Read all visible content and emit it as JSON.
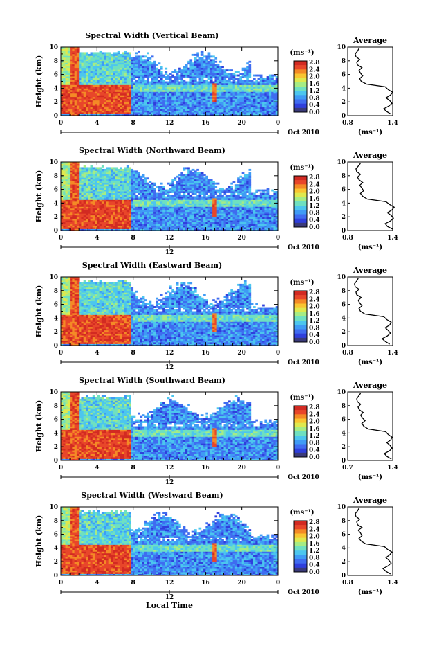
{
  "x_axis_label": "Local Time",
  "date_label": "Oct 2010",
  "colorbar": {
    "unit": "(ms⁻¹)",
    "tick_labels": [
      "0.0",
      "0.4",
      "0.8",
      "1.2",
      "1.6",
      "2.0",
      "2.4",
      "2.8"
    ],
    "colors": [
      "#3a3a7a",
      "#2f3fdc",
      "#3f6cf0",
      "#3f9bf5",
      "#4cc6ee",
      "#6fe0c0",
      "#a6ec84",
      "#dfe94e",
      "#f9c531",
      "#f48a26",
      "#e8462a",
      "#d22a22"
    ]
  },
  "chart_data": [
    {
      "type": "heatmap",
      "title": "Spectral Width (Vertical Beam)",
      "ylabel": "Height (km)",
      "y_ticks": [
        "0",
        "2",
        "4",
        "6",
        "8",
        "10"
      ],
      "x_ticks": [
        "0",
        "4",
        "8",
        "12",
        "16",
        "20",
        "0"
      ],
      "x_day_marker": "",
      "xlim": [
        0,
        24
      ],
      "ylim": [
        0,
        10
      ],
      "profile": {
        "title": "Average",
        "xlabel": "(ms⁻¹)",
        "x_ticks": [
          "0.8",
          "1.4"
        ],
        "xlim": [
          0.8,
          1.4
        ],
        "y_ticks": [
          "0",
          "2",
          "4",
          "6",
          "8",
          "10"
        ],
        "heights": [
          0.2,
          0.6,
          1.0,
          1.4,
          1.8,
          2.2,
          2.6,
          3.0,
          3.4,
          3.8,
          4.2,
          4.6,
          5.0,
          5.4,
          5.8,
          6.2,
          6.6,
          7.0,
          7.4,
          7.8,
          8.2,
          8.6,
          9.0,
          9.4,
          9.8
        ],
        "values": [
          1.38,
          1.32,
          1.28,
          1.35,
          1.39,
          1.36,
          1.31,
          1.37,
          1.4,
          1.34,
          1.3,
          1.05,
          0.98,
          0.96,
          1.0,
          0.97,
          0.95,
          0.99,
          0.93,
          0.92,
          0.96,
          0.91,
          0.9,
          0.93,
          0.95
        ]
      }
    },
    {
      "type": "heatmap",
      "title": "Spectral Width (Northward Beam)",
      "ylabel": "Height (km)",
      "y_ticks": [
        "0",
        "2",
        "4",
        "6",
        "8",
        "10"
      ],
      "x_ticks": [
        "0",
        "4",
        "8",
        "12",
        "16",
        "20",
        "0"
      ],
      "x_day_marker": "12",
      "xlim": [
        0,
        24
      ],
      "ylim": [
        0,
        10
      ],
      "profile": {
        "title": "Average",
        "xlabel": "(ms⁻¹)",
        "x_ticks": [
          "0.8",
          "1.4"
        ],
        "xlim": [
          0.8,
          1.4
        ],
        "y_ticks": [
          "0",
          "2",
          "4",
          "6",
          "8",
          "10"
        ],
        "heights": [
          0.2,
          0.6,
          1.0,
          1.4,
          1.8,
          2.2,
          2.6,
          3.0,
          3.4,
          3.8,
          4.2,
          4.6,
          5.0,
          5.4,
          5.8,
          6.2,
          6.6,
          7.0,
          7.4,
          7.8,
          8.2,
          8.6,
          9.0,
          9.4,
          9.8
        ],
        "values": [
          1.4,
          1.33,
          1.3,
          1.37,
          1.41,
          1.38,
          1.33,
          1.39,
          1.42,
          1.36,
          1.31,
          1.06,
          1.0,
          0.97,
          1.01,
          0.99,
          0.96,
          1.0,
          0.95,
          0.93,
          0.97,
          0.92,
          0.91,
          0.94,
          0.97
        ]
      }
    },
    {
      "type": "heatmap",
      "title": "Spectral Width (Eastward Beam)",
      "ylabel": "Height (km)",
      "y_ticks": [
        "0",
        "2",
        "4",
        "6",
        "8",
        "10"
      ],
      "x_ticks": [
        "0",
        "4",
        "8",
        "12",
        "16",
        "20",
        "0"
      ],
      "x_day_marker": "12",
      "xlim": [
        0,
        24
      ],
      "ylim": [
        0,
        10
      ],
      "profile": {
        "title": "Average",
        "xlabel": "(ms⁻¹)",
        "x_ticks": [
          "0.8",
          "1.4"
        ],
        "xlim": [
          0.8,
          1.4
        ],
        "y_ticks": [
          "0",
          "2",
          "4",
          "6",
          "8",
          "10"
        ],
        "heights": [
          0.2,
          0.6,
          1.0,
          1.4,
          1.8,
          2.2,
          2.6,
          3.0,
          3.4,
          3.8,
          4.2,
          4.6,
          5.0,
          5.4,
          5.8,
          6.2,
          6.6,
          7.0,
          7.4,
          7.8,
          8.2,
          8.6,
          9.0,
          9.4,
          9.8
        ],
        "values": [
          1.36,
          1.3,
          1.26,
          1.33,
          1.37,
          1.34,
          1.3,
          1.36,
          1.38,
          1.32,
          1.28,
          1.03,
          0.97,
          0.95,
          0.99,
          0.96,
          0.94,
          0.98,
          0.92,
          0.91,
          0.95,
          0.9,
          0.89,
          0.92,
          0.94
        ]
      }
    },
    {
      "type": "heatmap",
      "title": "Spectral Width (Southward Beam)",
      "ylabel": "Height (km)",
      "y_ticks": [
        "0",
        "2",
        "4",
        "6",
        "8",
        "10"
      ],
      "x_ticks": [
        "0",
        "4",
        "8",
        "12",
        "16",
        "20",
        "0"
      ],
      "x_day_marker": "12",
      "xlim": [
        0,
        24
      ],
      "ylim": [
        0,
        10
      ],
      "profile": {
        "title": "Average",
        "xlabel": "(ms⁻¹)",
        "x_ticks": [
          "0.7",
          "1.4"
        ],
        "xlim": [
          0.7,
          1.4
        ],
        "y_ticks": [
          "0",
          "2",
          "4",
          "6",
          "8",
          "10"
        ],
        "heights": [
          0.2,
          0.6,
          1.0,
          1.4,
          1.8,
          2.2,
          2.6,
          3.0,
          3.4,
          3.8,
          4.2,
          4.6,
          5.0,
          5.4,
          5.8,
          6.2,
          6.6,
          7.0,
          7.4,
          7.8,
          8.2,
          8.6,
          9.0,
          9.4,
          9.8
        ],
        "values": [
          1.38,
          1.31,
          1.27,
          1.35,
          1.39,
          1.36,
          1.31,
          1.37,
          1.39,
          1.33,
          1.29,
          1.02,
          0.95,
          0.92,
          0.97,
          0.93,
          0.9,
          0.94,
          0.88,
          0.86,
          0.9,
          0.85,
          0.84,
          0.87,
          0.9
        ]
      }
    },
    {
      "type": "heatmap",
      "title": "Spectral Width (Westward Beam)",
      "ylabel": "Height (km)",
      "y_ticks": [
        "0",
        "2",
        "4",
        "6",
        "8",
        "10"
      ],
      "x_ticks": [
        "0",
        "4",
        "8",
        "12",
        "16",
        "20",
        "0"
      ],
      "x_day_marker": "12",
      "xlim": [
        0,
        24
      ],
      "ylim": [
        0,
        10
      ],
      "profile": {
        "title": "Average",
        "xlabel": "(ms⁻¹)",
        "x_ticks": [
          "0.8",
          "1.4"
        ],
        "xlim": [
          0.8,
          1.4
        ],
        "y_ticks": [
          "0",
          "2",
          "4",
          "6",
          "8",
          "10"
        ],
        "heights": [
          0.2,
          0.6,
          1.0,
          1.4,
          1.8,
          2.2,
          2.6,
          3.0,
          3.4,
          3.8,
          4.2,
          4.6,
          5.0,
          5.4,
          5.8,
          6.2,
          6.6,
          7.0,
          7.4,
          7.8,
          8.2,
          8.6,
          9.0,
          9.4,
          9.8
        ],
        "values": [
          1.37,
          1.31,
          1.27,
          1.34,
          1.38,
          1.35,
          1.31,
          1.36,
          1.39,
          1.33,
          1.29,
          1.04,
          0.98,
          0.95,
          0.99,
          0.97,
          0.94,
          0.99,
          0.93,
          0.92,
          0.96,
          0.91,
          0.9,
          0.93,
          0.95
        ]
      }
    }
  ]
}
